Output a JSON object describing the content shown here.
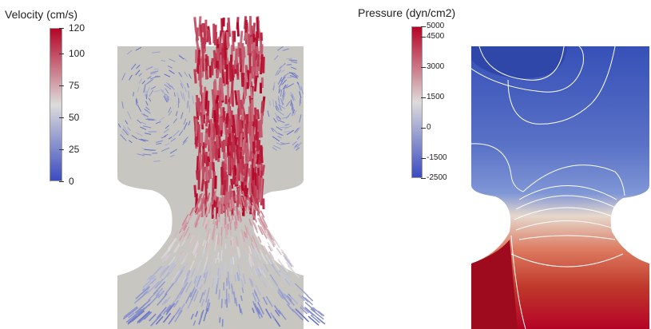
{
  "velocity": {
    "title": "Velocity (cm/s)",
    "colorbar": {
      "min": 0,
      "max": 120,
      "ticks": [
        120,
        100,
        75,
        50,
        25,
        0
      ]
    },
    "colors": {
      "low": "#3b4cc0",
      "mid": "#dddcdb",
      "high": "#b40426"
    }
  },
  "pressure": {
    "title": "Pressure (dyn/cm2)",
    "colorbar": {
      "min": -2500,
      "max": 5000,
      "ticks": [
        5000,
        4500,
        3000,
        1500,
        0,
        -1500,
        -2500
      ]
    },
    "colors": {
      "low": "#3b4cc0",
      "mid": "#dddcdb",
      "high": "#b40426"
    }
  },
  "domain_color": "#c8c6c0"
}
